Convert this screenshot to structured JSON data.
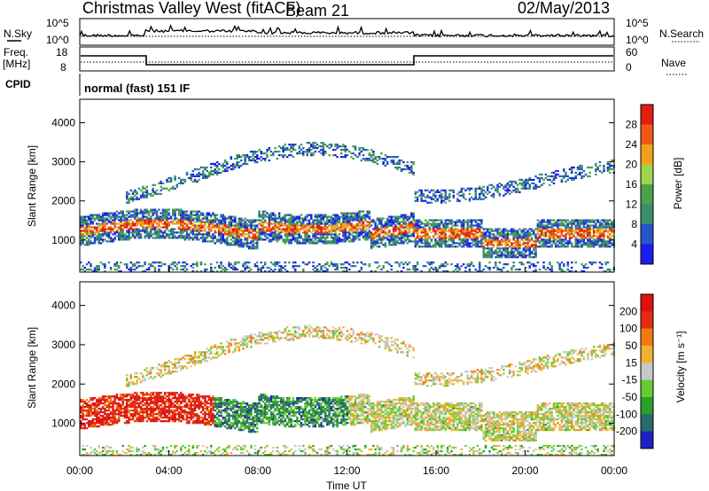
{
  "header": {
    "station": "Christmas Valley West (fitACF)",
    "beam": "Beam 21",
    "date": "02/May/2013"
  },
  "small_panels": {
    "nsky_label": "N.Sky",
    "nsky_ticks": [
      "10^5",
      "10^0"
    ],
    "nsearch_label": "N.Search",
    "nsearch_ticks": [
      "10^5",
      "10^0"
    ],
    "freq_label": "Freq.",
    "freq_unit": "[MHz]",
    "freq_ticks": [
      "18",
      "8"
    ],
    "nave_label": "Nave",
    "nave_ticks": [
      "60",
      "0"
    ],
    "cpid_label": "CPID",
    "cpid_value": "normal (fast) 151 IF"
  },
  "chart_data": [
    {
      "type": "heatmap",
      "title": "",
      "xlabel": "",
      "ylabel": "Slant Range [km]",
      "x_ticks": [
        "00:00",
        "04:00",
        "08:00",
        "12:00",
        "16:00",
        "20:00",
        "00:00"
      ],
      "y_ticks": [
        "1000",
        "2000",
        "3000",
        "4000"
      ],
      "ylim": [
        180,
        4600
      ],
      "colorbar_label": "Power [dB]",
      "colorbar_ticks": [
        "4",
        "8",
        "12",
        "16",
        "20",
        "24",
        "28"
      ],
      "colorbar_colors": [
        "#1c1cf0",
        "#2855c8",
        "#3a8e6a",
        "#4ca24a",
        "#9fd44e",
        "#f2a01e",
        "#ee5a14",
        "#e01e10"
      ]
    },
    {
      "type": "heatmap",
      "title": "",
      "xlabel": "Time UT",
      "ylabel": "Slant Range [km]",
      "x_ticks": [
        "00:00",
        "04:00",
        "08:00",
        "12:00",
        "16:00",
        "20:00",
        "00:00"
      ],
      "y_ticks": [
        "1000",
        "2000",
        "3000",
        "4000"
      ],
      "ylim": [
        180,
        4600
      ],
      "colorbar_label": "Velocity [m s⁻¹]",
      "colorbar_ticks": [
        "200",
        "100",
        "50",
        "15",
        "-15",
        "-50",
        "-100",
        "-200"
      ],
      "colorbar_colors": [
        "#2020c0",
        "#2a6a6a",
        "#2e9e2e",
        "#66cc33",
        "#c8c8c8",
        "#f2b030",
        "#f07a10",
        "#e03010",
        "#e01010"
      ]
    }
  ]
}
